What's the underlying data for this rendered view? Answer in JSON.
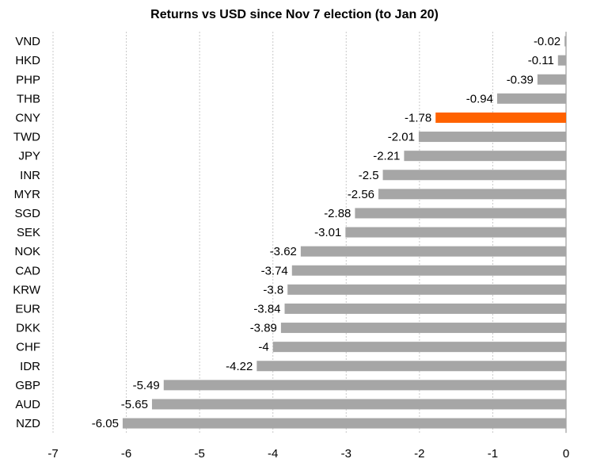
{
  "chart_data": {
    "type": "bar",
    "orientation": "horizontal",
    "title": "Returns vs USD since Nov 7 election (to Jan 20)",
    "xlabel": "",
    "ylabel": "",
    "xlim": [
      -7,
      0
    ],
    "xticks": [
      "-7",
      "-6",
      "-5",
      "-4",
      "-3",
      "-2",
      "-1",
      "0"
    ],
    "grid": true,
    "legend": "none",
    "categories": [
      "VND",
      "HKD",
      "PHP",
      "THB",
      "CNY",
      "TWD",
      "JPY",
      "INR",
      "MYR",
      "SGD",
      "SEK",
      "NOK",
      "CAD",
      "KRW",
      "EUR",
      "DKK",
      "CHF",
      "IDR",
      "GBP",
      "AUD",
      "NZD"
    ],
    "values": [
      -0.02,
      -0.11,
      -0.39,
      -0.94,
      -1.78,
      -2.01,
      -2.21,
      -2.5,
      -2.56,
      -2.88,
      -3.01,
      -3.62,
      -3.74,
      -3.8,
      -3.84,
      -3.89,
      -4,
      -4.22,
      -5.49,
      -5.65,
      -6.05
    ],
    "value_labels": [
      "-0.02",
      "-0.11",
      "-0.39",
      "-0.94",
      "-1.78",
      "-2.01",
      "-2.21",
      "-2.5",
      "-2.56",
      "-2.88",
      "-3.01",
      "-3.62",
      "-3.74",
      "-3.8",
      "-3.84",
      "-3.89",
      "-4",
      "-4.22",
      "-5.49",
      "-5.65",
      "-6.05"
    ],
    "colors": {
      "default": "#a6a6a6",
      "highlight": "#ff6200"
    },
    "highlight_category": "CNY"
  }
}
